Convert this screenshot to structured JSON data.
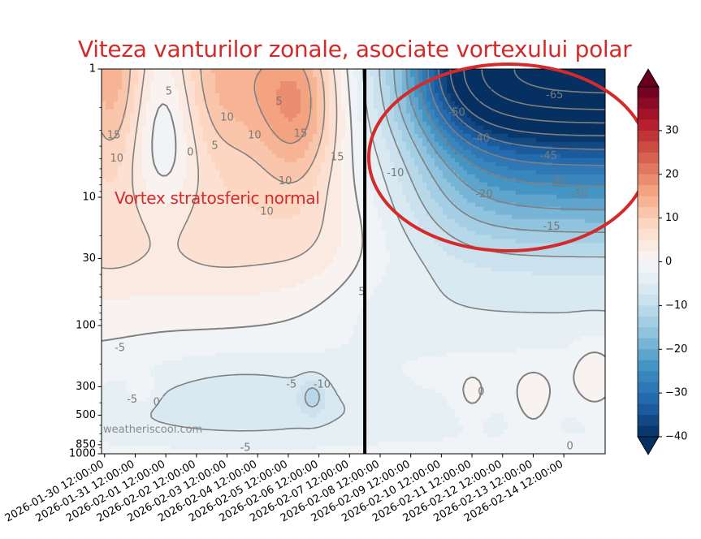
{
  "chart_data": {
    "type": "heatmap",
    "title": "Viteza vanturilor zonale, asociate vortexului polar",
    "xlabel": "",
    "ylabel": "",
    "y_scale": "log",
    "y_inverted": true,
    "ylim": [
      1000,
      1
    ],
    "y_ticks": [
      1,
      10,
      30,
      100,
      300,
      500,
      850,
      1000
    ],
    "x_ticks": [
      "2026-01-30 12:00:00",
      "2026-01-31 12:00:00",
      "2026-02-01 12:00:00",
      "2026-02-02 12:00:00",
      "2026-02-03 12:00:00",
      "2026-02-04 12:00:00",
      "2026-02-05 12:00:00",
      "2026-02-06 12:00:00",
      "2026-02-07 12:00:00",
      "2026-02-08 12:00:00",
      "2026-02-09 12:00:00",
      "2026-02-10 12:00:00",
      "2026-02-11 12:00:00",
      "2026-02-12 12:00:00",
      "2026-02-13 12:00:00",
      "2026-02-14 12:00:00"
    ],
    "colorbar": {
      "range": [
        -40,
        40
      ],
      "ticks": [
        30,
        20,
        10,
        0,
        -10,
        -20,
        -30,
        -40
      ],
      "colormap": "RdBu_r"
    },
    "contour_labels": [
      {
        "text": "5",
        "t": 2.1,
        "p": 1.5
      },
      {
        "text": "10",
        "t": 4.0,
        "p": 2.4
      },
      {
        "text": "15",
        "t": 0.3,
        "p": 3.3
      },
      {
        "text": "10",
        "t": 0.4,
        "p": 5.0
      },
      {
        "text": "0",
        "t": 2.8,
        "p": 4.5
      },
      {
        "text": "5",
        "t": 3.6,
        "p": 4.0
      },
      {
        "text": "10",
        "t": 4.9,
        "p": 3.3
      },
      {
        "text": "10",
        "t": 5.9,
        "p": 7.5
      },
      {
        "text": "15",
        "t": 6.4,
        "p": 3.2
      },
      {
        "text": "15",
        "t": 7.6,
        "p": 4.9
      },
      {
        "text": "10",
        "t": 5.3,
        "p": 13
      },
      {
        "text": "5",
        "t": 8.4,
        "p": 55
      },
      {
        "text": "-5",
        "t": 0.9,
        "p": 380
      },
      {
        "text": "0",
        "t": 1.7,
        "p": 400
      },
      {
        "text": "-5",
        "t": 6.1,
        "p": 290
      },
      {
        "text": "-10",
        "t": 7.1,
        "p": 290
      },
      {
        "text": "-5",
        "t": 4.6,
        "p": 900
      },
      {
        "text": "0",
        "t": 12.3,
        "p": 330
      },
      {
        "text": "-10",
        "t": 9.5,
        "p": 6.5
      },
      {
        "text": "-50",
        "t": 11.5,
        "p": 2.2
      },
      {
        "text": "-40",
        "t": 12.3,
        "p": 3.5
      },
      {
        "text": "-65",
        "t": 14.7,
        "p": 1.6
      },
      {
        "text": "-45",
        "t": 14.5,
        "p": 4.8
      },
      {
        "text": "-35",
        "t": 14.8,
        "p": 7.5
      },
      {
        "text": "-30",
        "t": 15.5,
        "p": 9.5
      },
      {
        "text": "-20",
        "t": 12.4,
        "p": 9.5
      },
      {
        "text": "-15",
        "t": 14.6,
        "p": 17
      },
      {
        "text": "0",
        "t": 15.2,
        "p": 880
      },
      {
        "text": "-5",
        "t": 0.5,
        "p": 150
      },
      {
        "text": "5",
        "t": 5.7,
        "p": 1.8
      }
    ],
    "vertical_marker_t": 8.5,
    "annotations": [
      "Vortex stratosferic normal"
    ],
    "highlight": "red ellipse around upper stratosphere, 2026-02-09 to 2026-02-14"
  },
  "watermark": "weatheriscool.com",
  "colors": {
    "title": "#d42a2a",
    "annotation": "#d42a2a",
    "marker": "#000000",
    "ellipse": "#d42a2a"
  }
}
